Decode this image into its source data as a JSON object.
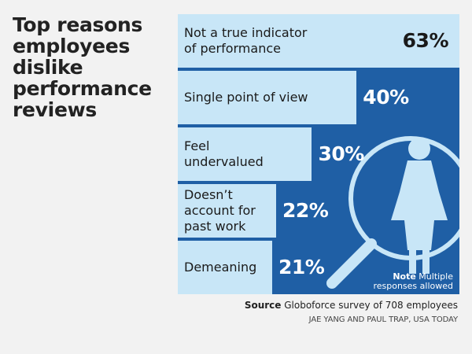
{
  "chart_data": {
    "type": "bar",
    "orientation": "horizontal",
    "title": "Top reasons employees dislike performance reviews",
    "categories": [
      "Not a true indicator\nof performance",
      "Single point of view",
      "Feel\nundervalued",
      "Doesn’t\naccount for\npast work",
      "Demeaning"
    ],
    "values": [
      63,
      40,
      30,
      22,
      21
    ],
    "value_labels": [
      "63%",
      "40%",
      "30%",
      "22%",
      "21%"
    ],
    "unit": "%",
    "xlim": [
      0,
      63
    ],
    "note_label": "Note",
    "note_text": "Multiple\nresponses allowed",
    "source_label": "Source",
    "source_text": "Globoforce survey of 708 employees",
    "credit": "JAE YANG AND PAUL TRAP, USA TODAY"
  },
  "colors": {
    "background": "#f2f2f2",
    "panel": "#1f5fa5",
    "bar": "#c8e6f7",
    "icon": "#c8e6f7"
  },
  "icon_name": "magnifier-person-icon"
}
